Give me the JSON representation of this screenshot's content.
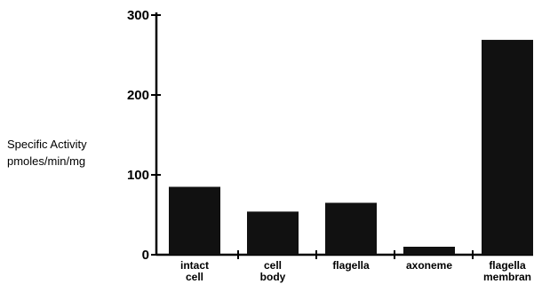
{
  "chart_data": {
    "type": "bar",
    "title": "",
    "xlabel": "",
    "ylabel_lines": [
      "Specific Activity",
      "pmoles/min/mg"
    ],
    "ylim": [
      0,
      300
    ],
    "yticks": [
      0,
      100,
      200,
      300
    ],
    "categories": [
      [
        "intact",
        "cell"
      ],
      [
        "cell",
        "body"
      ],
      [
        "flagella"
      ],
      [
        "axoneme"
      ],
      [
        "flagella",
        "membran"
      ]
    ],
    "values": [
      85,
      54,
      65,
      10,
      269
    ],
    "bar_color": "#111111",
    "grid": false,
    "legend": "none"
  }
}
